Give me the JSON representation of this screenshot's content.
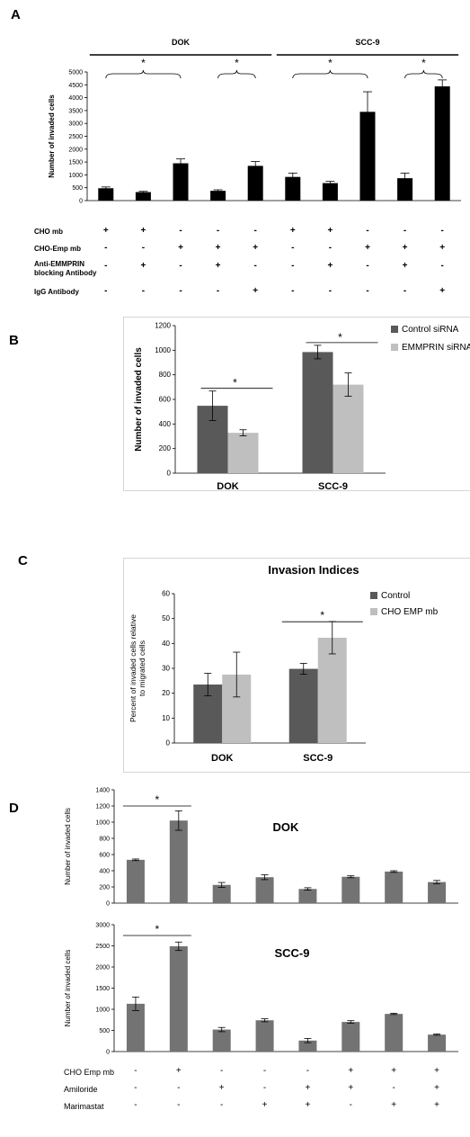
{
  "panels": {
    "A": "A",
    "B": "B",
    "C": "C",
    "D": "D"
  },
  "colors": {
    "bar_black": "#000000",
    "dark_grey": "#595959",
    "light_grey": "#bfbfbf",
    "d_grey": "#737373"
  },
  "chart_data": [
    {
      "id": "A",
      "type": "bar",
      "group_labels": [
        "DOK",
        "SCC-9"
      ],
      "ylabel": "Number of invaded cells",
      "ylim": [
        0,
        5000
      ],
      "yticks": [
        0,
        500,
        1000,
        1500,
        2000,
        2500,
        3000,
        3500,
        4000,
        4500,
        5000
      ],
      "values": [
        480,
        330,
        1450,
        380,
        1350,
        920,
        680,
        3450,
        870,
        4440
      ],
      "errors": [
        50,
        30,
        170,
        40,
        170,
        150,
        70,
        780,
        200,
        250
      ],
      "significance": "*",
      "treatment_rows": [
        {
          "label": "CHO mb",
          "signs": [
            "+",
            "+",
            "-",
            "-",
            "-",
            "+",
            "+",
            "-",
            "-",
            "-"
          ]
        },
        {
          "label": "CHO-Emp mb",
          "signs": [
            "-",
            "-",
            "+",
            "+",
            "+",
            "-",
            "-",
            "+",
            "+",
            "+"
          ]
        },
        {
          "label": "Anti-EMMPRIN blocking Antibody",
          "signs": [
            "-",
            "+",
            "-",
            "+",
            "-",
            "-",
            "+",
            "-",
            "+",
            "-"
          ]
        },
        {
          "label": "IgG Antibody",
          "signs": [
            "-",
            "-",
            "-",
            "-",
            "+",
            "-",
            "-",
            "-",
            "-",
            "+"
          ]
        }
      ]
    },
    {
      "id": "B",
      "type": "bar",
      "categories": [
        "DOK",
        "SCC-9"
      ],
      "series": [
        {
          "name": "Control siRNA",
          "values": [
            548,
            985
          ],
          "errors": [
            120,
            55
          ]
        },
        {
          "name": "EMMPRIN siRNA",
          "values": [
            328,
            720
          ],
          "errors": [
            25,
            95
          ]
        }
      ],
      "ylabel": "Number of invaded cells",
      "ylim": [
        0,
        1200
      ],
      "yticks": [
        0,
        200,
        400,
        600,
        800,
        1000,
        1200
      ],
      "significance": "*",
      "legend": "right"
    },
    {
      "id": "C",
      "type": "bar",
      "title": "Invasion Indices",
      "categories": [
        "DOK",
        "SCC-9"
      ],
      "series": [
        {
          "name": "Control",
          "values": [
            23.5,
            29.8
          ],
          "errors": [
            4.5,
            2.2
          ]
        },
        {
          "name": "CHO EMP mb",
          "values": [
            27.5,
            42.3
          ],
          "errors": [
            9,
            6.5
          ]
        }
      ],
      "ylabel": "Percent of invaded cells relative to migrated cells",
      "ylabel_lines": [
        "Percent of invaded cells relative",
        "to migrated cells"
      ],
      "ylim": [
        0,
        60
      ],
      "yticks": [
        0,
        10,
        20,
        30,
        40,
        50,
        60
      ],
      "significance": "*",
      "legend": "right"
    },
    {
      "id": "D1",
      "type": "bar",
      "title": "DOK",
      "ylabel": "Number of invaded cells",
      "ylim": [
        0,
        1400
      ],
      "yticks": [
        0,
        200,
        400,
        600,
        800,
        1000,
        1200,
        1400
      ],
      "values": [
        535,
        1020,
        225,
        320,
        175,
        325,
        390,
        260
      ],
      "errors": [
        10,
        120,
        30,
        30,
        15,
        12,
        10,
        20
      ],
      "significance": "*"
    },
    {
      "id": "D2",
      "type": "bar",
      "title": "SCC-9",
      "ylabel": "Number of invaded cells",
      "ylim": [
        0,
        3000
      ],
      "yticks": [
        0,
        500,
        1000,
        1500,
        2000,
        2500,
        3000
      ],
      "values": [
        1130,
        2490,
        520,
        740,
        260,
        700,
        890,
        400
      ],
      "errors": [
        160,
        100,
        50,
        35,
        50,
        30,
        15,
        15
      ],
      "significance": "*",
      "treatment_rows": [
        {
          "label": "CHO Emp mb",
          "signs": [
            "-",
            "+",
            "-",
            "-",
            "-",
            "+",
            "+",
            "+"
          ]
        },
        {
          "label": "Amiloride",
          "signs": [
            "-",
            "-",
            "+",
            "-",
            "+",
            "+",
            "-",
            "+"
          ]
        },
        {
          "label": "Marimastat",
          "signs": [
            "-",
            "-",
            "-",
            "+",
            "+",
            "-",
            "+",
            "+"
          ]
        }
      ]
    }
  ]
}
